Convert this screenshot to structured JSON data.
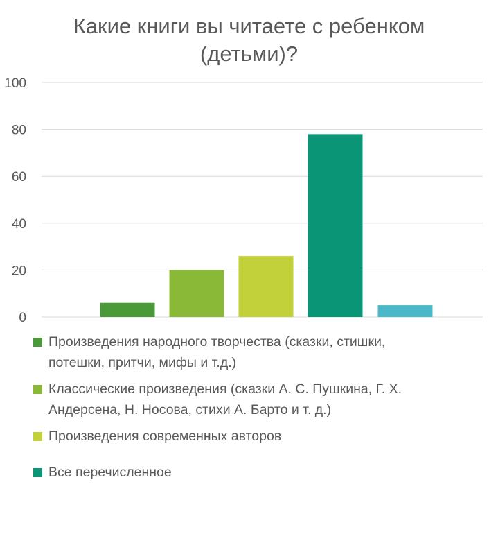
{
  "chart_data": {
    "type": "bar",
    "title": "Какие книги вы читаете с ребенком (детьми)?",
    "title_lines": [
      "Какие книги вы читаете с ребенком",
      "(детьми)?"
    ],
    "ylim": [
      0,
      100
    ],
    "yticks": [
      0,
      20,
      40,
      60,
      80,
      100
    ],
    "grid": true,
    "legend_position": "bottom",
    "series": [
      {
        "name": "Произведения народного творчества (сказки, стишки, потешки, притчи, мифы и т.д.)",
        "label_lines": [
          "Произведения народного творчества (сказки, стишки,",
          "потешки, притчи, мифы и т.д.)"
        ],
        "value": 6,
        "color": "#4a9a3a"
      },
      {
        "name": "Классические произведения (сказки А. С. Пушкина, Г. Х. Андерсена, Н. Носова, стихи А. Барто и т. д.)",
        "label_lines": [
          "Классические произведения (сказки А. С. Пушкина, Г. Х.",
          "Андерсена, Н. Носова, стихи А. Барто и т. д.)"
        ],
        "value": 20,
        "color": "#8ab837"
      },
      {
        "name": "Произведения современных авторов",
        "label_lines": [
          "Произведения современных авторов"
        ],
        "value": 26,
        "color": "#c2d13a"
      },
      {
        "name": "Все перечисленное",
        "label_lines": [
          "Все перечисленное"
        ],
        "value": 78,
        "color": "#0a9676"
      },
      {
        "name": "",
        "label_lines": [],
        "value": 5,
        "color": "#4ab8c8"
      }
    ]
  }
}
